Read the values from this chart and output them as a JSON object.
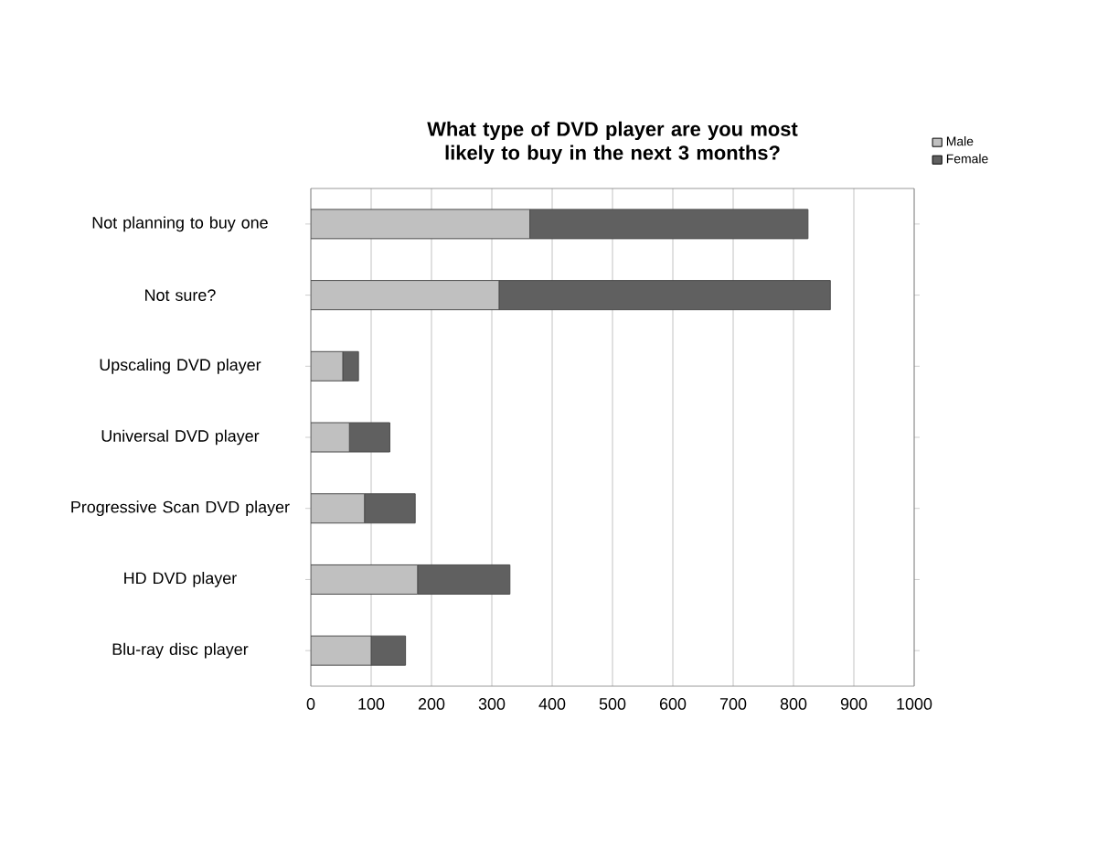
{
  "chart_data": {
    "type": "bar",
    "orientation": "horizontal",
    "stacked": true,
    "title": "What type of DVD player are you most likely to buy in the next 3 months?",
    "categories": [
      "Not planning to buy one",
      "Not sure?",
      "Upscaling DVD player",
      "Universal DVD player",
      "Progressive Scan DVD player",
      "HD DVD player",
      "Blu-ray disc player"
    ],
    "series": [
      {
        "name": "Male",
        "color": "#c0c0c0",
        "values": [
          363,
          312,
          53,
          64,
          89,
          177,
          100
        ]
      },
      {
        "name": "Female",
        "color": "#606060",
        "values": [
          461,
          549,
          26,
          67,
          84,
          153,
          57
        ]
      }
    ],
    "xlim": [
      0,
      1000
    ],
    "xticks": [
      0,
      100,
      200,
      300,
      400,
      500,
      600,
      700,
      800,
      900,
      1000
    ],
    "grid": "x",
    "legend": "top right"
  }
}
